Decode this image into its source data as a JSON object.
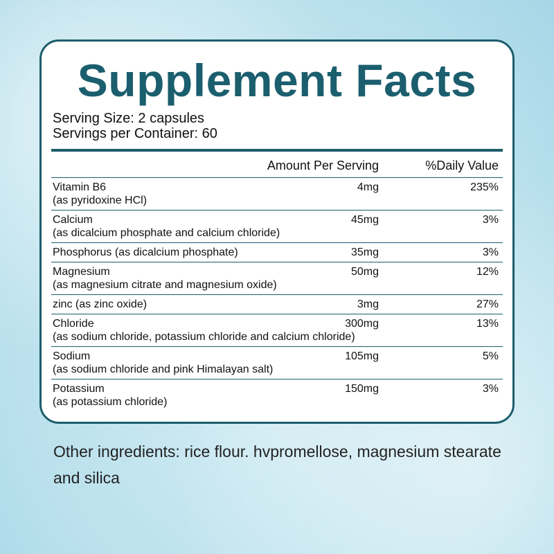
{
  "title": "Supplement Facts",
  "serving_size": "Serving Size: 2 capsules",
  "servings_per_container": "Servings per Container: 60",
  "table": {
    "headers": [
      "Amount Per Serving",
      "%Daily Value"
    ],
    "rows": [
      {
        "name": "Vitamin B6",
        "note": "(as pyridoxine HCl)",
        "amount": "4mg",
        "dv": "235%"
      },
      {
        "name": "Calcium",
        "note": "(as dicalcium phosphate and calcium chloride)",
        "amount": "45mg",
        "dv": "3%"
      },
      {
        "name": "Phosphorus (as dicalcium phosphate)",
        "amount": "35mg",
        "dv": "3%"
      },
      {
        "name": "Magnesium",
        "note": "(as magnesium citrate and magnesium oxide)",
        "amount": "50mg",
        "dv": "12%"
      },
      {
        "name": "zinc (as zinc oxide)",
        "amount": "3mg",
        "dv": "27%"
      },
      {
        "name": "Chloride",
        "note": "(as sodium chloride, potassium chloride and calcium chloride)",
        "amount": "300mg",
        "dv": "13%"
      },
      {
        "name": "Sodium",
        "note": "(as sodium chloride and pink Himalayan salt)",
        "amount": "105mg",
        "dv": "5%"
      },
      {
        "name": "Potassium",
        "note": "(as potassium chloride)",
        "amount": "150mg",
        "dv": "3%"
      }
    ]
  },
  "other_ingredients": "Other ingredients: rice flour. hvpromellose, magnesium stearate and silica"
}
